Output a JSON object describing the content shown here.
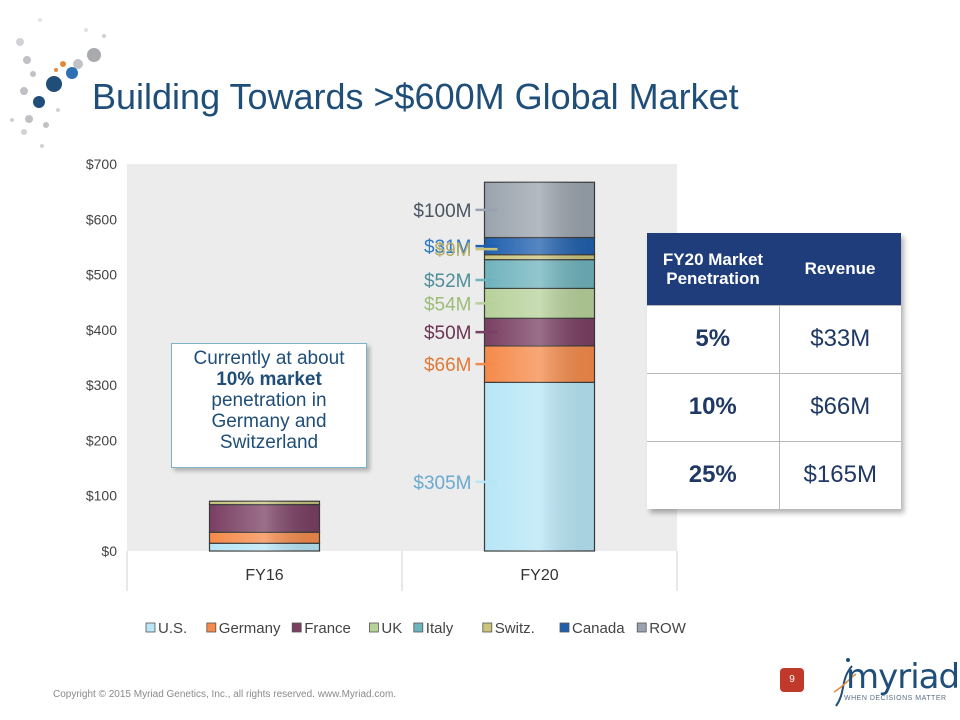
{
  "title": "Building Towards >$600M Global Market",
  "colors": {
    "us": "#b7e6f6",
    "germany": "#f58a4a",
    "france": "#7a3f63",
    "uk": "#b7d19a",
    "italy": "#6fb3bd",
    "switz": "#c9c47a",
    "canada": "#1f5fae",
    "row": "#9aa3ad",
    "header": "#1f3d7a",
    "accent": "#1f4e79"
  },
  "chart_data": {
    "type": "bar",
    "stacked": true,
    "categories": [
      "FY16",
      "FY20"
    ],
    "series": [
      {
        "name": "U.S.",
        "values": [
          14,
          305
        ]
      },
      {
        "name": "Germany",
        "values": [
          20,
          66
        ]
      },
      {
        "name": "France",
        "values": [
          50,
          50
        ]
      },
      {
        "name": "UK",
        "values": [
          0,
          54
        ]
      },
      {
        "name": "Italy",
        "values": [
          0,
          52
        ]
      },
      {
        "name": "Switz.",
        "values": [
          6,
          9
        ]
      },
      {
        "name": "Canada",
        "values": [
          0,
          31
        ]
      },
      {
        "name": "ROW",
        "values": [
          0,
          100
        ]
      }
    ],
    "ylim": [
      0,
      700
    ],
    "yticks": [
      "$0",
      "$100",
      "$200",
      "$300",
      "$400",
      "$500",
      "$600",
      "$700"
    ],
    "annotations": [
      "$100M",
      "$31M",
      "$9M",
      "$52M",
      "$54M",
      "$50M",
      "$66M",
      "$305M"
    ],
    "legend_position": "bottom",
    "grid": false
  },
  "callout": {
    "line1": "Currently at about",
    "line2": "10% market",
    "line3": "penetration in",
    "line4": "Germany and",
    "line5": "Switzerland"
  },
  "table": {
    "header_col1": "FY20 Market Penetration",
    "header_col2": "Revenue",
    "rows": [
      {
        "pct": "5%",
        "rev": "$33M"
      },
      {
        "pct": "10%",
        "rev": "$66M"
      },
      {
        "pct": "25%",
        "rev": "$165M"
      }
    ]
  },
  "footer": "Copyright © 2015 Myriad Genetics, Inc., all rights reserved.  www.Myriad.com.",
  "page_number": "9",
  "brand": {
    "name": "myriad",
    "tagline": "WHEN DECISIONS MATTER"
  }
}
